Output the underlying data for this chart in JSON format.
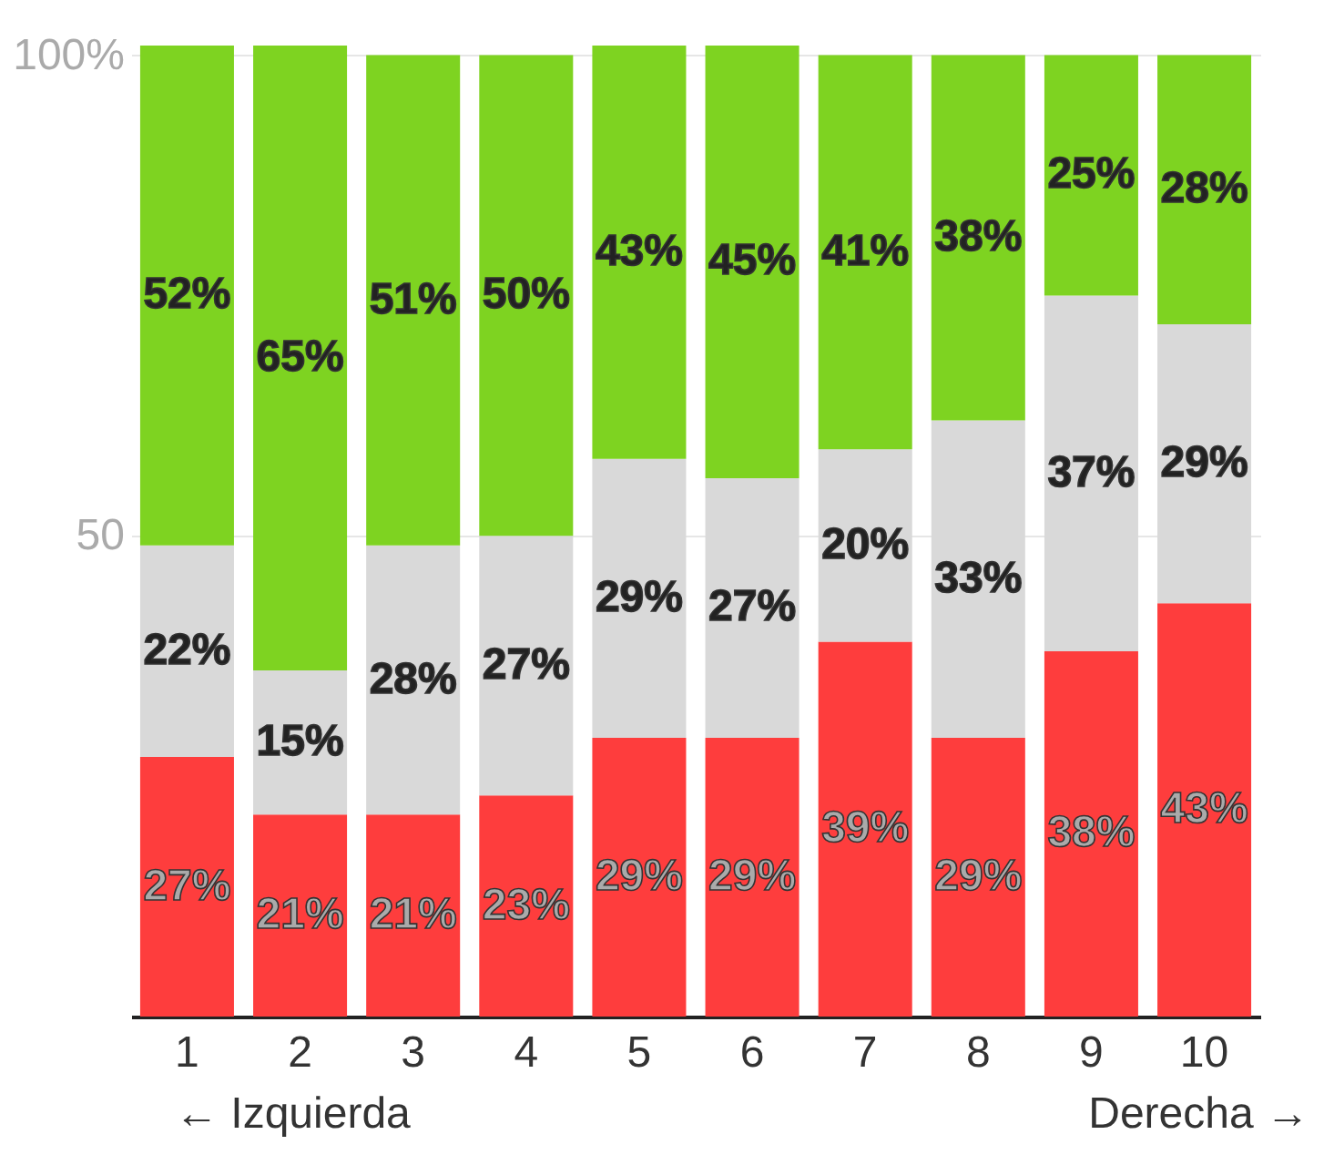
{
  "chart_data": {
    "type": "bar",
    "stacked": true,
    "categories": [
      "1",
      "2",
      "3",
      "4",
      "5",
      "6",
      "7",
      "8",
      "9",
      "10"
    ],
    "series": [
      {
        "color": "#fe3d3d",
        "values": [
          27,
          21,
          21,
          23,
          29,
          29,
          39,
          29,
          38,
          43
        ],
        "value_labels": [
          "27%",
          "21%",
          "21%",
          "23%",
          "29%",
          "29%",
          "39%",
          "29%",
          "38%",
          "43%"
        ]
      },
      {
        "color": "#d9d9d9",
        "values": [
          22,
          15,
          28,
          27,
          29,
          27,
          20,
          33,
          37,
          29
        ],
        "value_labels": [
          "22%",
          "15%",
          "28%",
          "27%",
          "29%",
          "27%",
          "20%",
          "33%",
          "37%",
          "29%"
        ]
      },
      {
        "color": "#7ed321",
        "values": [
          52,
          65,
          51,
          50,
          43,
          45,
          41,
          38,
          25,
          28
        ],
        "value_labels": [
          "52%",
          "65%",
          "51%",
          "50%",
          "43%",
          "45%",
          "41%",
          "38%",
          "25%",
          "28%"
        ]
      }
    ],
    "ylim": [
      0,
      101
    ],
    "yticks": [
      50,
      {
        "value": 100,
        "label": "100%"
      }
    ],
    "grid": "y",
    "annotations": [
      "← Izquierda",
      "Derecha →"
    ]
  }
}
